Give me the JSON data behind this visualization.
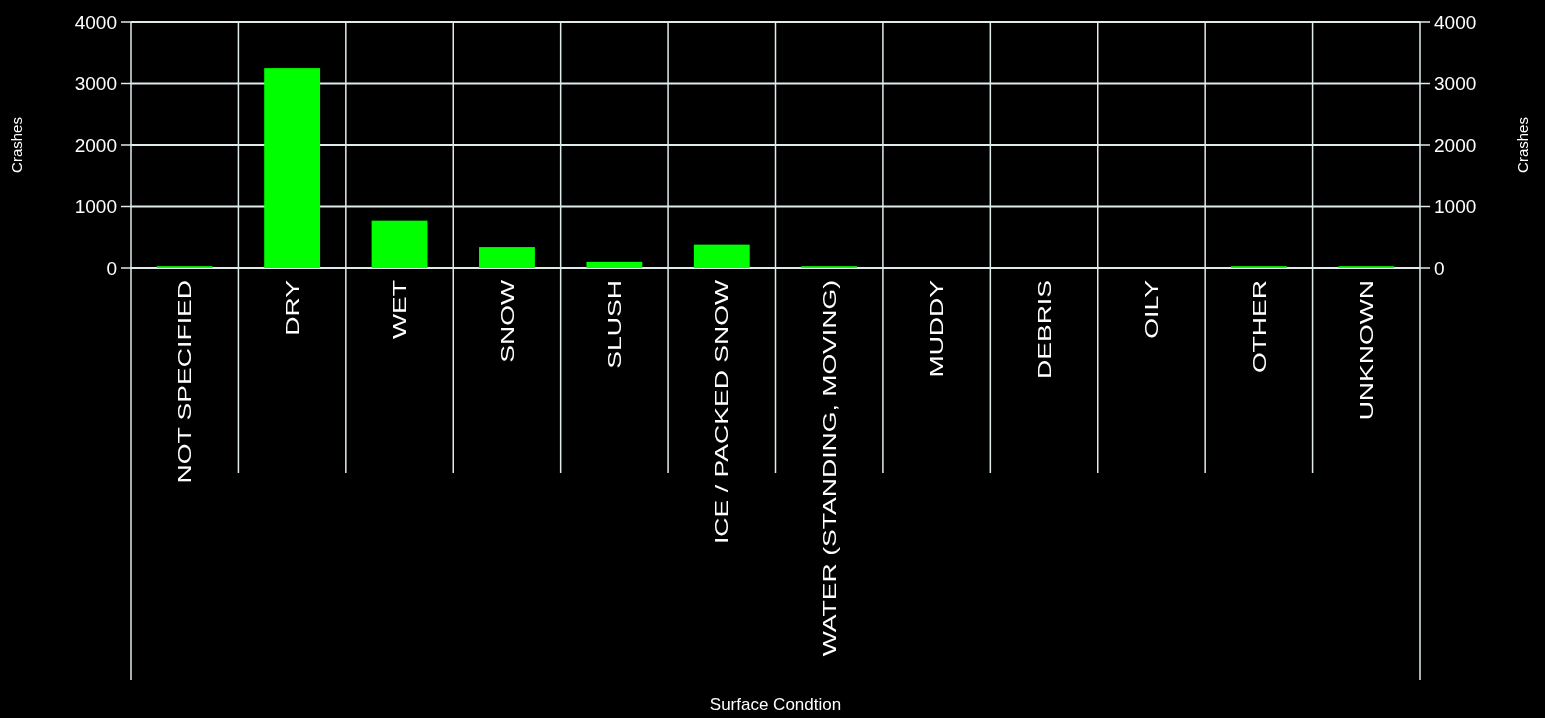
{
  "chart_data": {
    "type": "bar",
    "xlabel": "Surface Condtion",
    "ylabel": "Crashes",
    "y2label": "Crashes",
    "categories": [
      "NOT SPECIFIED",
      "DRY",
      "WET",
      "SNOW",
      "SLUSH",
      "ICE / PACKED SNOW",
      "WATER (STANDING, MOVING)",
      "MUDDY",
      "DEBRIS",
      "OILY",
      "OTHER",
      "UNKNOWN"
    ],
    "values": [
      30,
      3250,
      770,
      340,
      100,
      380,
      30,
      0,
      0,
      0,
      30,
      30
    ],
    "color": "#00ff00",
    "ylim": [
      0,
      4000
    ],
    "yticks": [
      0,
      1000,
      2000,
      3000,
      4000
    ],
    "y2lim": [
      0,
      4000
    ],
    "y2ticks": [
      0,
      1000,
      2000,
      3000,
      4000
    ],
    "grid": true
  }
}
